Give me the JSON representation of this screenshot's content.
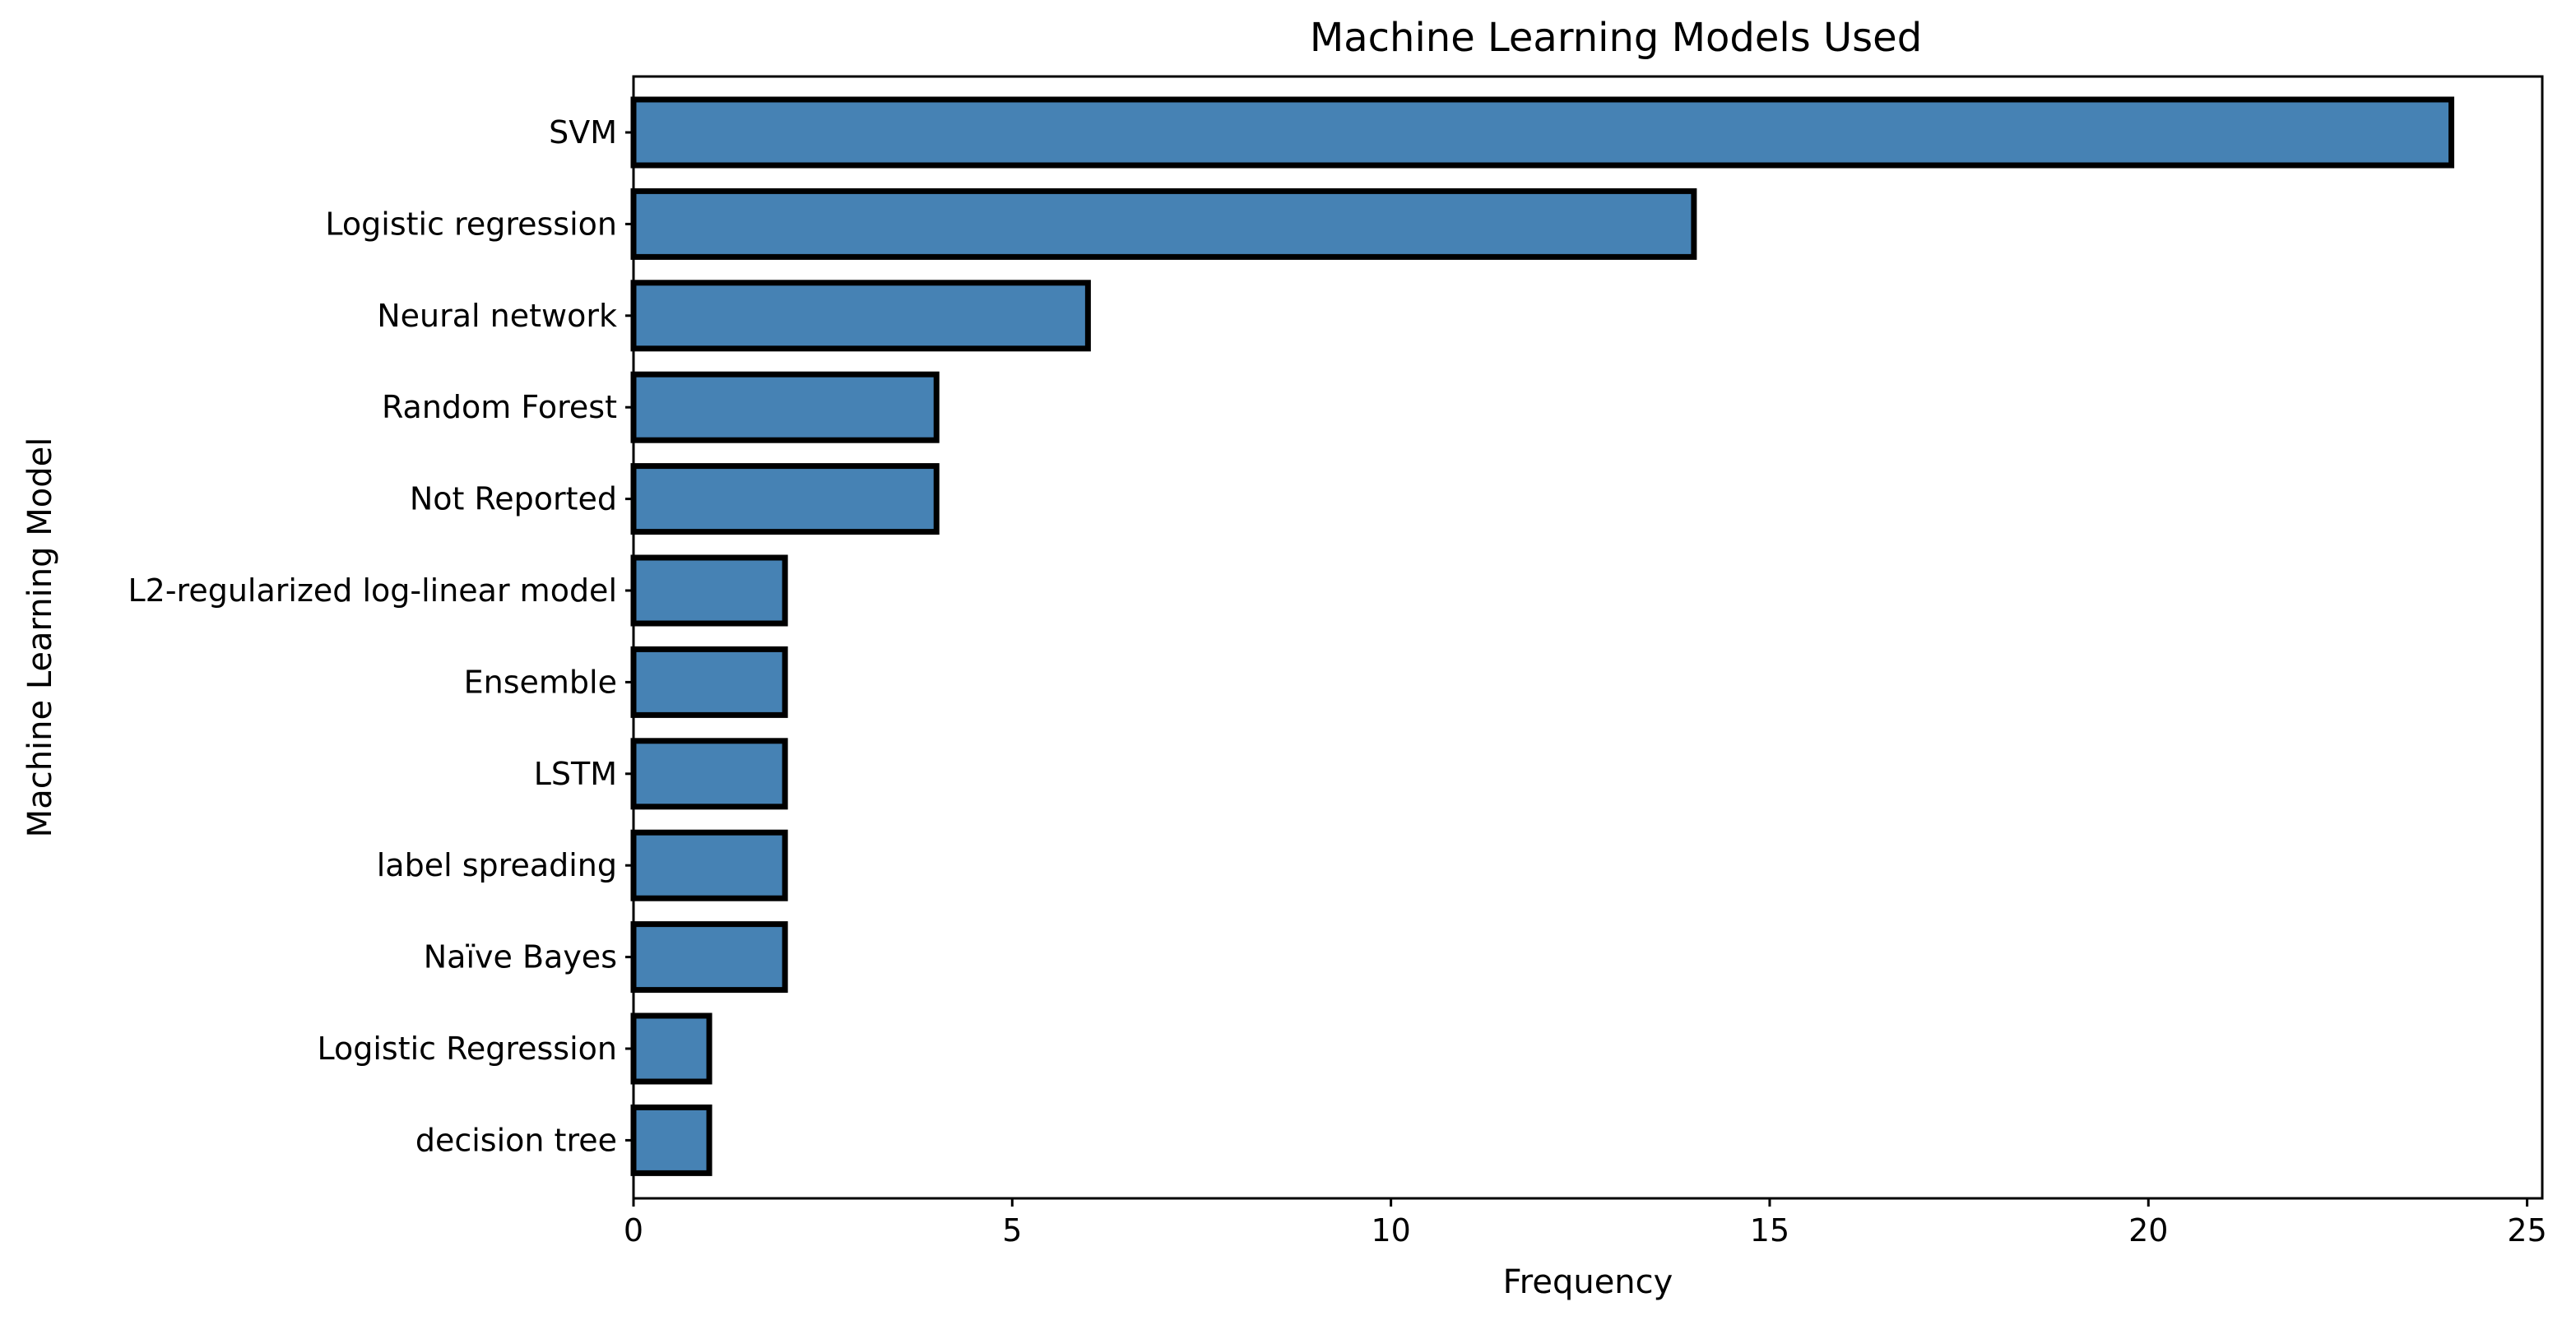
{
  "chart_data": {
    "type": "bar",
    "orientation": "horizontal",
    "title": "Machine Learning Models Used",
    "xlabel": "Frequency",
    "ylabel": "Machine Learning Model",
    "categories": [
      "SVM",
      "Logistic regression",
      "Neural network",
      "Random Forest",
      "Not Reported",
      "L2-regularized log-linear model",
      "Ensemble",
      "LSTM",
      "label spreading",
      "Naïve Bayes",
      "Logistic Regression",
      "decision tree"
    ],
    "values": [
      24,
      14,
      6,
      4,
      4,
      2,
      2,
      2,
      2,
      2,
      1,
      1
    ],
    "xlim": [
      0,
      25.2
    ],
    "xticks": [
      0,
      5,
      10,
      15,
      20,
      25
    ],
    "grid": false,
    "bar_color": "#4682b4",
    "edge_color": "#000000"
  }
}
